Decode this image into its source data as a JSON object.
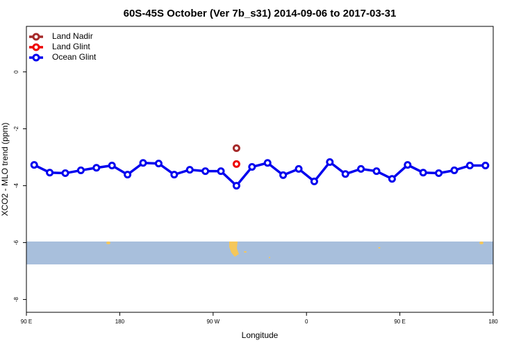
{
  "chart_data": {
    "type": "line",
    "title": "60S-45S October (Ver 7b_s31)   2014-09-06 to 2017-03-31",
    "x_label": "Longitude",
    "y_label": "XCO2 - MLO trend (ppm)",
    "xlim": [
      90,
      540
    ],
    "ylim": [
      -8.45,
      1.6
    ],
    "xticks": [
      {
        "value": 90,
        "label": "90 E"
      },
      180,
      {
        "value": 270,
        "label": "90 W"
      },
      {
        "value": 360,
        "label": "0"
      },
      {
        "value": 450,
        "label": "90 E"
      },
      {
        "value": 540,
        "label": "180"
      }
    ],
    "yticks": [
      0,
      -2,
      -4,
      -6,
      -8
    ],
    "legend": "top-left",
    "series": [
      {
        "name": "Land Nadir",
        "color": "#a52a2a",
        "x": [
          292.5
        ],
        "values": [
          -2.68
        ]
      },
      {
        "name": "Land Glint",
        "color": "#ee0000",
        "x": [
          292.5
        ],
        "values": [
          -3.24
        ]
      },
      {
        "name": "Ocean Glint",
        "color": "#0000ee",
        "x": [
          97.5,
          112.5,
          127.5,
          142.5,
          157.5,
          172.5,
          187.5,
          202.5,
          217.5,
          232.5,
          247.5,
          262.5,
          277.5,
          292.5,
          307.5,
          322.5,
          337.5,
          352.5,
          367.5,
          382.5,
          397.5,
          412.5,
          427.5,
          442.5,
          457.5,
          472.5,
          487.5,
          502.5,
          517.5,
          532.5
        ],
        "values": [
          -3.27,
          -3.54,
          -3.56,
          -3.46,
          -3.37,
          -3.29,
          -3.61,
          -3.2,
          -3.22,
          -3.61,
          -3.44,
          -3.49,
          -3.49,
          -4.0,
          -3.34,
          -3.2,
          -3.63,
          -3.41,
          -3.85,
          -3.17,
          -3.59,
          -3.41,
          -3.49,
          -3.76,
          -3.27,
          -3.54,
          -3.56,
          -3.46,
          -3.29,
          -3.29
        ]
      }
    ]
  }
}
